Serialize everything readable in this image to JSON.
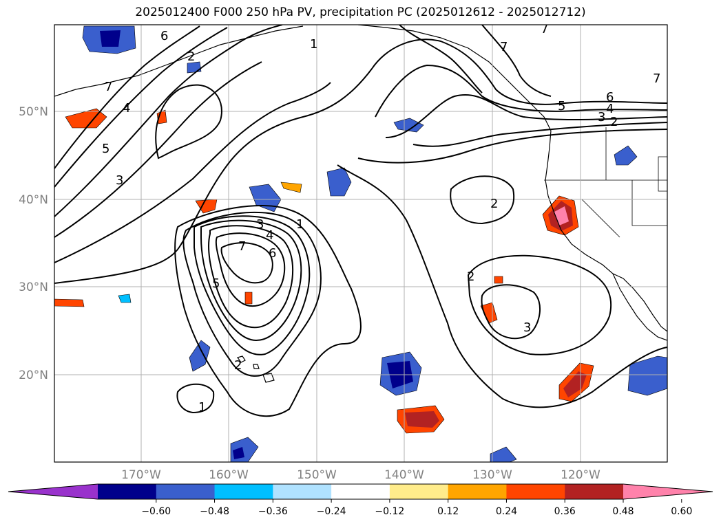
{
  "title": "2025012400 F000 250 hPa PV, precipitation PC (2025012612 - 2025012712)",
  "map": {
    "lat_labels": [
      "50°N",
      "40°N",
      "30°N",
      "20°N"
    ],
    "lon_labels": [
      "170°W",
      "160°W",
      "150°W",
      "140°W",
      "130°W",
      "120°W"
    ],
    "label_color": "#808080"
  },
  "contour_labels": [
    "6",
    "2",
    "7",
    "4",
    "5",
    "3",
    "1",
    "3",
    "4",
    "7",
    "6",
    "5",
    "2",
    "1",
    "2",
    "2",
    "3",
    "6",
    "5",
    "4",
    "3",
    "2",
    "7",
    "7",
    "7"
  ],
  "colorbar": {
    "ticks": [
      "−0.60",
      "−0.48",
      "−0.36",
      "−0.24",
      "−0.12",
      "0.12",
      "0.24",
      "0.36",
      "0.48",
      "0.60"
    ],
    "colors": [
      "#9932cc",
      "#00008b",
      "#3a5fcd",
      "#00bfff",
      "#b0e2ff",
      "#ffffff",
      "#ffec8b",
      "#ffa500",
      "#ff4500",
      "#b22222",
      "#ff82ab"
    ]
  }
}
